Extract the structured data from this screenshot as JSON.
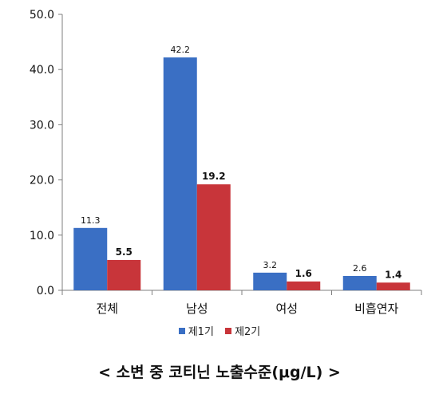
{
  "chart_data": {
    "type": "bar",
    "categories": [
      "전체",
      "남성",
      "여성",
      "비흡연자"
    ],
    "series": [
      {
        "name": "제1기",
        "values": [
          11.3,
          42.2,
          3.2,
          2.6
        ],
        "color": "#3a6fc4",
        "labels": [
          "11.3",
          "42.2",
          "3.2",
          "2.6"
        ]
      },
      {
        "name": "제2기",
        "values": [
          5.5,
          19.2,
          1.6,
          1.4
        ],
        "color": "#c8353a",
        "labels": [
          "5.5",
          "19.2",
          "1.6",
          "1.4"
        ]
      }
    ],
    "ylim": [
      0,
      50
    ],
    "yticks": [
      "0.0",
      "10.0",
      "20.0",
      "30.0",
      "40.0",
      "50.0"
    ],
    "grid": false,
    "legend_position": "bottom"
  },
  "caption": "< 소변 중 코티닌 노출수준(μg/L) >"
}
